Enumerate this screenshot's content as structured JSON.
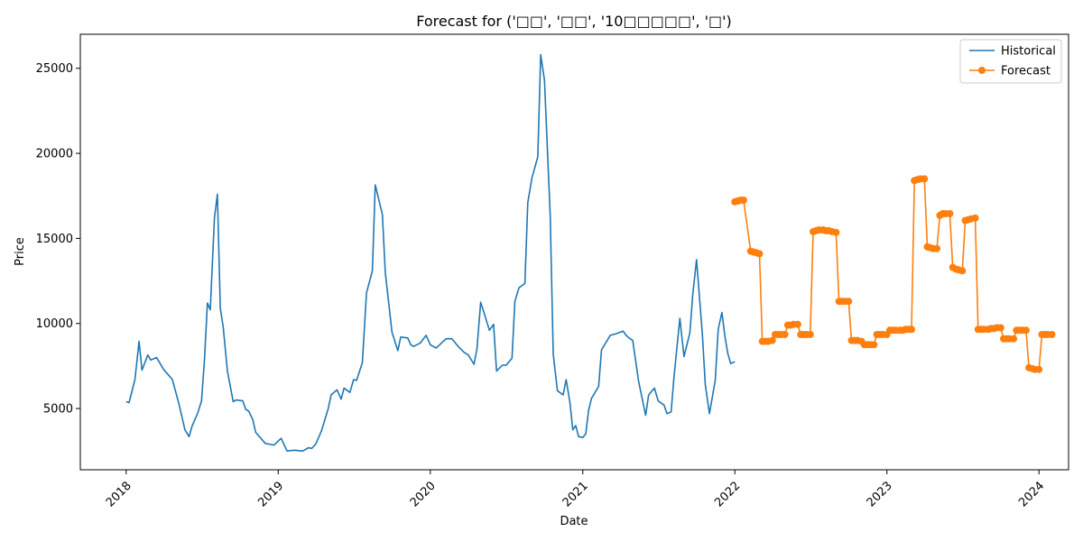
{
  "chart_data": {
    "type": "line",
    "title": "Forecast for ('□□', '□□', '10□□□□□', '□')",
    "xlabel": "Date",
    "ylabel": "Price",
    "x_ticks": [
      "2018",
      "2019",
      "2020",
      "2021",
      "2022",
      "2023",
      "2024"
    ],
    "y_ticks": [
      5000,
      10000,
      15000,
      20000,
      25000
    ],
    "xlim": [
      "2017-09-13",
      "2024-03-12"
    ],
    "ylim": [
      1400,
      27000
    ],
    "grid": false,
    "legend_position": "top-right",
    "series": [
      {
        "name": "Historical",
        "color": "#1f77b4",
        "marker": "none",
        "points": [
          [
            "2018-01-01",
            5400
          ],
          [
            "2018-01-08",
            5350
          ],
          [
            "2018-01-22",
            6700
          ],
          [
            "2018-02-01",
            8950
          ],
          [
            "2018-02-08",
            7250
          ],
          [
            "2018-02-22",
            8150
          ],
          [
            "2018-03-01",
            7850
          ],
          [
            "2018-03-15",
            8000
          ],
          [
            "2018-04-01",
            7300
          ],
          [
            "2018-04-22",
            6700
          ],
          [
            "2018-05-08",
            5250
          ],
          [
            "2018-05-22",
            3750
          ],
          [
            "2018-06-01",
            3350
          ],
          [
            "2018-06-08",
            3950
          ],
          [
            "2018-06-22",
            4750
          ],
          [
            "2018-07-01",
            5450
          ],
          [
            "2018-07-08",
            7900
          ],
          [
            "2018-07-15",
            11200
          ],
          [
            "2018-07-22",
            10800
          ],
          [
            "2018-08-01",
            16200
          ],
          [
            "2018-08-08",
            17600
          ],
          [
            "2018-08-15",
            10900
          ],
          [
            "2018-08-22",
            9800
          ],
          [
            "2018-09-01",
            7200
          ],
          [
            "2018-09-15",
            5400
          ],
          [
            "2018-09-22",
            5500
          ],
          [
            "2018-10-08",
            5450
          ],
          [
            "2018-10-15",
            4950
          ],
          [
            "2018-10-22",
            4850
          ],
          [
            "2018-11-01",
            4350
          ],
          [
            "2018-11-08",
            3600
          ],
          [
            "2018-12-01",
            2950
          ],
          [
            "2018-12-22",
            2850
          ],
          [
            "2019-01-08",
            3250
          ],
          [
            "2019-01-22",
            2500
          ],
          [
            "2019-02-08",
            2550
          ],
          [
            "2019-03-01",
            2500
          ],
          [
            "2019-03-15",
            2700
          ],
          [
            "2019-03-22",
            2650
          ],
          [
            "2019-04-01",
            2900
          ],
          [
            "2019-04-15",
            3700
          ],
          [
            "2019-05-01",
            5000
          ],
          [
            "2019-05-08",
            5800
          ],
          [
            "2019-05-22",
            6100
          ],
          [
            "2019-06-01",
            5550
          ],
          [
            "2019-06-08",
            6200
          ],
          [
            "2019-06-22",
            5950
          ],
          [
            "2019-07-01",
            6700
          ],
          [
            "2019-07-08",
            6650
          ],
          [
            "2019-07-22",
            7700
          ],
          [
            "2019-08-01",
            11800
          ],
          [
            "2019-08-15",
            13100
          ],
          [
            "2019-08-22",
            18150
          ],
          [
            "2019-09-08",
            16400
          ],
          [
            "2019-09-15",
            13000
          ],
          [
            "2019-10-01",
            9500
          ],
          [
            "2019-10-15",
            8400
          ],
          [
            "2019-10-22",
            9200
          ],
          [
            "2019-11-08",
            9150
          ],
          [
            "2019-11-15",
            8750
          ],
          [
            "2019-11-22",
            8650
          ],
          [
            "2019-12-08",
            8850
          ],
          [
            "2019-12-22",
            9300
          ],
          [
            "2020-01-01",
            8750
          ],
          [
            "2020-01-15",
            8550
          ],
          [
            "2020-02-01",
            8950
          ],
          [
            "2020-02-08",
            9100
          ],
          [
            "2020-02-22",
            9100
          ],
          [
            "2020-03-08",
            8650
          ],
          [
            "2020-03-22",
            8300
          ],
          [
            "2020-04-01",
            8150
          ],
          [
            "2020-04-15",
            7600
          ],
          [
            "2020-04-22",
            8500
          ],
          [
            "2020-05-01",
            11250
          ],
          [
            "2020-05-08",
            10700
          ],
          [
            "2020-05-22",
            9600
          ],
          [
            "2020-06-01",
            9950
          ],
          [
            "2020-06-08",
            7200
          ],
          [
            "2020-06-22",
            7550
          ],
          [
            "2020-07-01",
            7550
          ],
          [
            "2020-07-15",
            7950
          ],
          [
            "2020-07-22",
            11300
          ],
          [
            "2020-08-01",
            12100
          ],
          [
            "2020-08-15",
            12350
          ],
          [
            "2020-08-22",
            17100
          ],
          [
            "2020-09-01",
            18550
          ],
          [
            "2020-09-15",
            19800
          ],
          [
            "2020-09-22",
            25800
          ],
          [
            "2020-10-01",
            24300
          ],
          [
            "2020-10-15",
            16300
          ],
          [
            "2020-10-22",
            8200
          ],
          [
            "2020-11-01",
            6050
          ],
          [
            "2020-11-15",
            5800
          ],
          [
            "2020-11-22",
            6700
          ],
          [
            "2020-12-01",
            5400
          ],
          [
            "2020-12-08",
            3750
          ],
          [
            "2020-12-15",
            4000
          ],
          [
            "2020-12-22",
            3350
          ],
          [
            "2021-01-01",
            3300
          ],
          [
            "2021-01-08",
            3500
          ],
          [
            "2021-01-15",
            4900
          ],
          [
            "2021-01-22",
            5600
          ],
          [
            "2021-02-08",
            6300
          ],
          [
            "2021-02-15",
            8450
          ],
          [
            "2021-03-08",
            9300
          ],
          [
            "2021-03-22",
            9400
          ],
          [
            "2021-04-08",
            9550
          ],
          [
            "2021-04-15",
            9300
          ],
          [
            "2021-04-22",
            9150
          ],
          [
            "2021-05-01",
            9000
          ],
          [
            "2021-05-15",
            6600
          ],
          [
            "2021-06-01",
            4600
          ],
          [
            "2021-06-08",
            5800
          ],
          [
            "2021-06-22",
            6200
          ],
          [
            "2021-07-01",
            5450
          ],
          [
            "2021-07-15",
            5200
          ],
          [
            "2021-07-22",
            4700
          ],
          [
            "2021-08-01",
            4800
          ],
          [
            "2021-08-08",
            6850
          ],
          [
            "2021-08-22",
            10300
          ],
          [
            "2021-09-01",
            8050
          ],
          [
            "2021-09-15",
            9450
          ],
          [
            "2021-09-22",
            11700
          ],
          [
            "2021-10-01",
            13750
          ],
          [
            "2021-10-15",
            9400
          ],
          [
            "2021-10-22",
            6400
          ],
          [
            "2021-11-01",
            4700
          ],
          [
            "2021-11-15",
            6650
          ],
          [
            "2021-11-22",
            9650
          ],
          [
            "2021-12-01",
            10650
          ],
          [
            "2021-12-08",
            9250
          ],
          [
            "2021-12-15",
            8250
          ],
          [
            "2021-12-22",
            7650
          ],
          [
            "2022-01-01",
            7750
          ]
        ]
      },
      {
        "name": "Forecast",
        "color": "#ff7f0e",
        "marker": "circle",
        "points": [
          [
            "2022-01-01",
            17150
          ],
          [
            "2022-01-08",
            17200
          ],
          [
            "2022-01-15",
            17250
          ],
          [
            "2022-01-22",
            17250
          ],
          [
            "2022-02-08",
            14250
          ],
          [
            "2022-02-15",
            14200
          ],
          [
            "2022-02-22",
            14150
          ],
          [
            "2022-03-01",
            14100
          ],
          [
            "2022-03-08",
            8950
          ],
          [
            "2022-03-15",
            8950
          ],
          [
            "2022-03-22",
            8950
          ],
          [
            "2022-04-01",
            9000
          ],
          [
            "2022-04-08",
            9350
          ],
          [
            "2022-04-15",
            9350
          ],
          [
            "2022-04-22",
            9350
          ],
          [
            "2022-05-01",
            9350
          ],
          [
            "2022-05-08",
            9900
          ],
          [
            "2022-05-15",
            9900
          ],
          [
            "2022-05-22",
            9950
          ],
          [
            "2022-06-01",
            9950
          ],
          [
            "2022-06-08",
            9350
          ],
          [
            "2022-06-15",
            9350
          ],
          [
            "2022-06-22",
            9350
          ],
          [
            "2022-07-01",
            9350
          ],
          [
            "2022-07-08",
            15400
          ],
          [
            "2022-07-15",
            15450
          ],
          [
            "2022-07-22",
            15500
          ],
          [
            "2022-08-01",
            15500
          ],
          [
            "2022-08-08",
            15450
          ],
          [
            "2022-08-15",
            15450
          ],
          [
            "2022-08-22",
            15400
          ],
          [
            "2022-09-01",
            15350
          ],
          [
            "2022-09-08",
            11300
          ],
          [
            "2022-09-15",
            11300
          ],
          [
            "2022-09-22",
            11300
          ],
          [
            "2022-10-01",
            11300
          ],
          [
            "2022-10-08",
            9000
          ],
          [
            "2022-10-15",
            9000
          ],
          [
            "2022-10-22",
            9000
          ],
          [
            "2022-11-01",
            8950
          ],
          [
            "2022-11-08",
            8750
          ],
          [
            "2022-11-15",
            8750
          ],
          [
            "2022-11-22",
            8750
          ],
          [
            "2022-12-01",
            8750
          ],
          [
            "2022-12-08",
            9350
          ],
          [
            "2022-12-15",
            9350
          ],
          [
            "2022-12-22",
            9350
          ],
          [
            "2023-01-01",
            9350
          ],
          [
            "2023-01-08",
            9600
          ],
          [
            "2023-01-15",
            9600
          ],
          [
            "2023-01-22",
            9600
          ],
          [
            "2023-02-01",
            9600
          ],
          [
            "2023-02-08",
            9600
          ],
          [
            "2023-02-15",
            9650
          ],
          [
            "2023-02-22",
            9650
          ],
          [
            "2023-03-01",
            9650
          ],
          [
            "2023-03-08",
            18400
          ],
          [
            "2023-03-15",
            18450
          ],
          [
            "2023-03-22",
            18500
          ],
          [
            "2023-04-01",
            18500
          ],
          [
            "2023-04-08",
            14500
          ],
          [
            "2023-04-15",
            14450
          ],
          [
            "2023-04-22",
            14400
          ],
          [
            "2023-05-01",
            14400
          ],
          [
            "2023-05-08",
            16350
          ],
          [
            "2023-05-15",
            16450
          ],
          [
            "2023-05-22",
            16450
          ],
          [
            "2023-06-01",
            16450
          ],
          [
            "2023-06-08",
            13300
          ],
          [
            "2023-06-15",
            13200
          ],
          [
            "2023-06-22",
            13150
          ],
          [
            "2023-07-01",
            13100
          ],
          [
            "2023-07-08",
            16050
          ],
          [
            "2023-07-15",
            16100
          ],
          [
            "2023-07-22",
            16150
          ],
          [
            "2023-08-01",
            16200
          ],
          [
            "2023-08-08",
            9650
          ],
          [
            "2023-08-15",
            9650
          ],
          [
            "2023-08-22",
            9650
          ],
          [
            "2023-09-01",
            9650
          ],
          [
            "2023-09-08",
            9700
          ],
          [
            "2023-09-15",
            9700
          ],
          [
            "2023-09-22",
            9750
          ],
          [
            "2023-10-01",
            9750
          ],
          [
            "2023-10-08",
            9100
          ],
          [
            "2023-10-15",
            9100
          ],
          [
            "2023-10-22",
            9100
          ],
          [
            "2023-11-01",
            9100
          ],
          [
            "2023-11-08",
            9600
          ],
          [
            "2023-11-15",
            9600
          ],
          [
            "2023-11-22",
            9600
          ],
          [
            "2023-12-01",
            9600
          ],
          [
            "2023-12-08",
            7400
          ],
          [
            "2023-12-15",
            7350
          ],
          [
            "2023-12-22",
            7300
          ],
          [
            "2024-01-01",
            7300
          ],
          [
            "2024-01-08",
            9350
          ],
          [
            "2024-01-15",
            9350
          ],
          [
            "2024-01-22",
            9350
          ],
          [
            "2024-02-01",
            9350
          ]
        ]
      }
    ]
  }
}
